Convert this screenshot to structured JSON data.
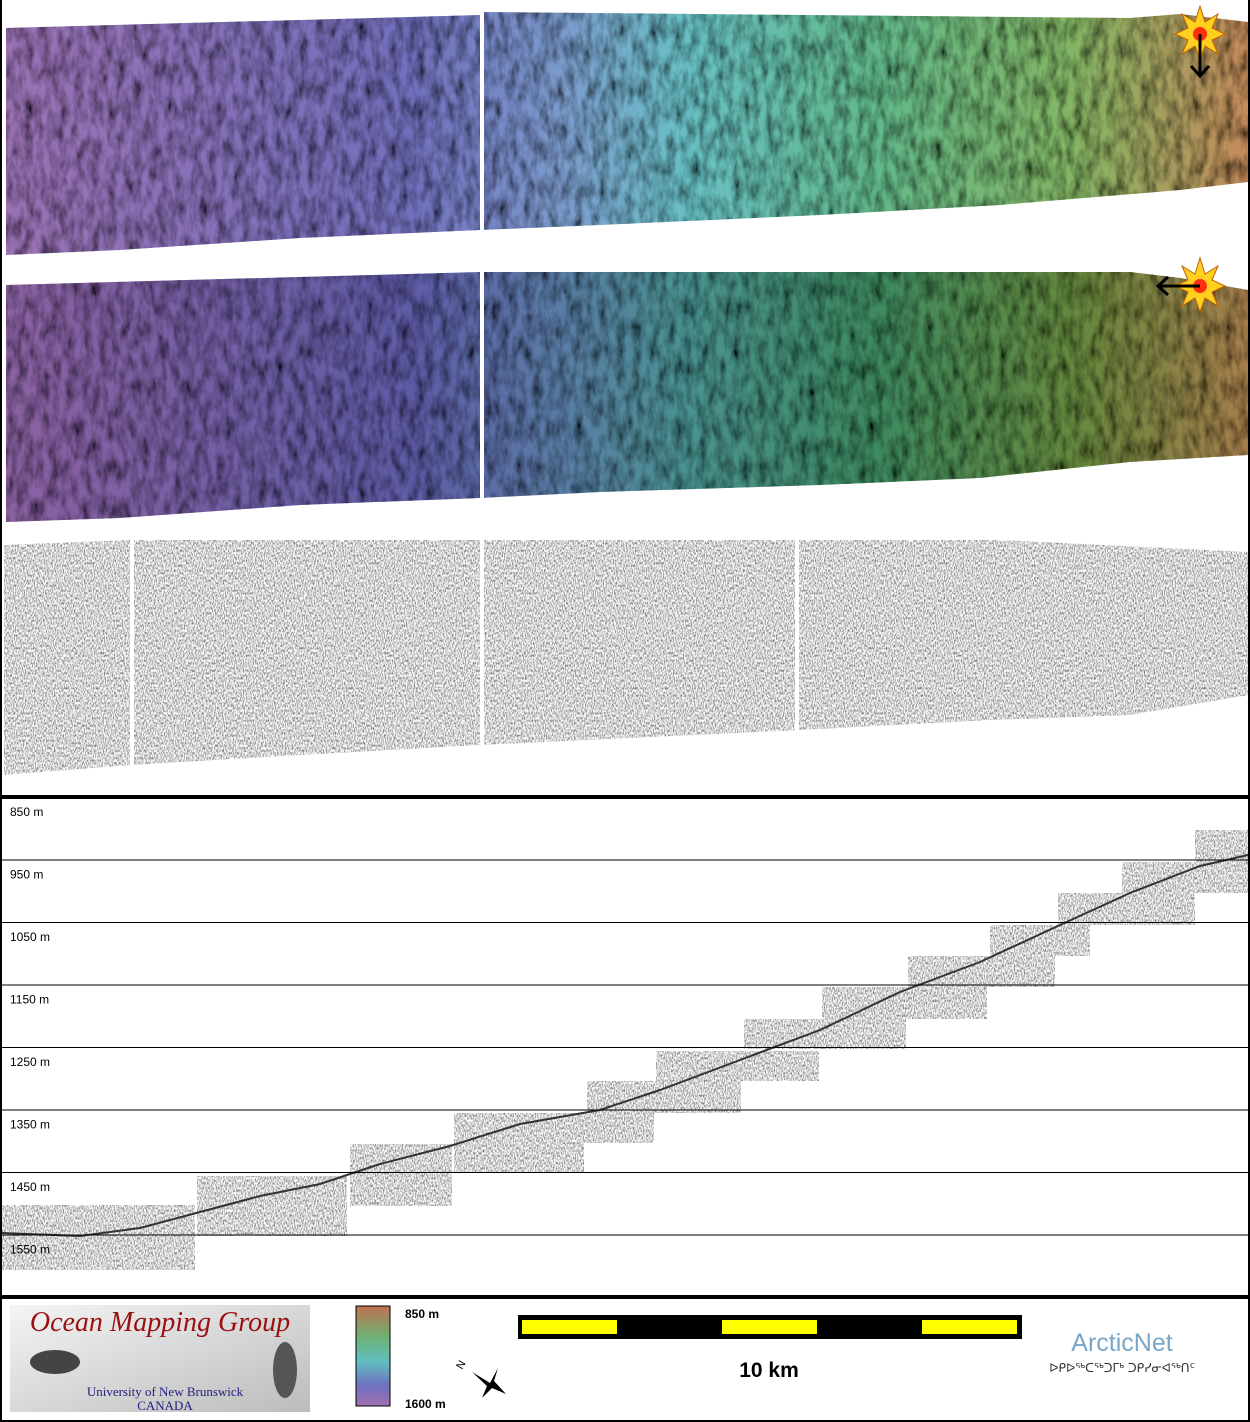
{
  "profile": {
    "depth_labels": [
      "850 m",
      "950 m",
      "1050 m",
      "1150 m",
      "1250 m",
      "1350 m",
      "1450 m",
      "1550 m"
    ]
  },
  "legend": {
    "group_name": "Ocean Mapping Group",
    "university": "University of New Brunswick",
    "country": "CANADA",
    "colorbar_top": "850 m",
    "colorbar_bottom": "1600 m",
    "scale_label": "10 km",
    "partner": "ArcticNet",
    "partner_syllabics": "ᐅᑭᐅᖅᑕᖅᑐᒥᒃ ᑐᑭᓯᓂᐊᖅᑎᑦ"
  }
}
